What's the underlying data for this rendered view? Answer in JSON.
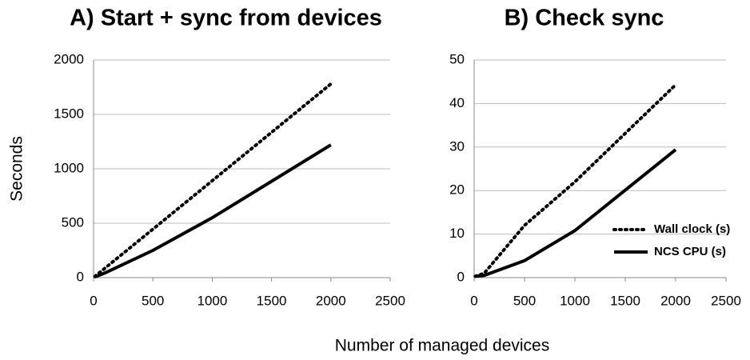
{
  "chart_data": [
    {
      "type": "line",
      "title": "A) Start + sync from devices",
      "ylabel": "Seconds",
      "x": [
        10,
        100,
        500,
        1000,
        2000
      ],
      "series": [
        {
          "color": "#000000",
          "dash": "dotted",
          "values": [
            10,
            90,
            445,
            890,
            1780
          ]
        },
        {
          "color": "#000000",
          "dash": "solid",
          "values": [
            5,
            45,
            250,
            550,
            1220
          ]
        }
      ],
      "xlim": [
        0,
        2500
      ],
      "xticks": [
        0,
        500,
        1000,
        1500,
        2000,
        2500
      ],
      "ylim": [
        0,
        2000
      ],
      "yticks": [
        0,
        500,
        1000,
        1500,
        2000
      ],
      "grid": true,
      "legend": false
    },
    {
      "type": "line",
      "title": "B) Check sync",
      "x": [
        10,
        100,
        500,
        1000,
        2000
      ],
      "series": [
        {
          "name": "Wall clock (s)",
          "color": "#000000",
          "dash": "dotted",
          "values": [
            0.3,
            1,
            12,
            22,
            44.3
          ]
        },
        {
          "name": "NCS CPU (s)",
          "color": "#000000",
          "dash": "solid",
          "values": [
            0.3,
            0.5,
            3.9,
            10.8,
            29.4
          ]
        }
      ],
      "xlim": [
        0,
        2500
      ],
      "xticks": [
        0,
        500,
        1000,
        1500,
        2000,
        2500
      ],
      "ylim": [
        0,
        50
      ],
      "yticks": [
        0,
        10,
        20,
        30,
        40,
        50
      ],
      "grid": true,
      "legend": true
    }
  ],
  "xlabel": "Number of managed devices"
}
